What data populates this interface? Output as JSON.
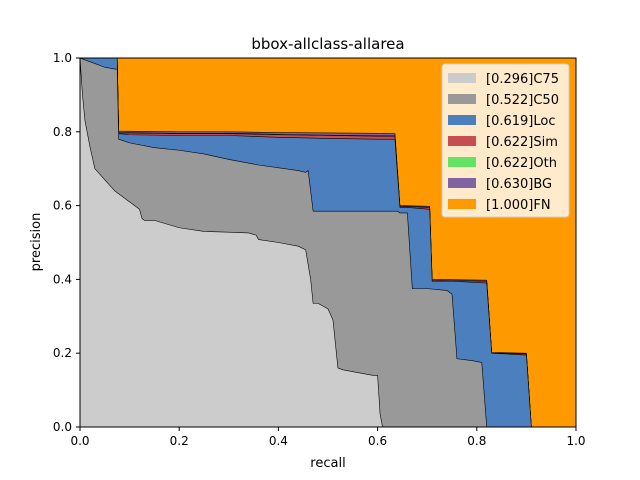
{
  "chart_data": {
    "type": "area",
    "title": "bbox-allclass-allarea",
    "xlabel": "recall",
    "ylabel": "precision",
    "xlim": [
      0,
      1
    ],
    "ylim": [
      0,
      1
    ],
    "xticks": [
      "0.0",
      "0.2",
      "0.4",
      "0.6",
      "0.8",
      "1.0"
    ],
    "yticks": [
      "0.0",
      "0.2",
      "0.4",
      "0.6",
      "0.8",
      "1.0"
    ],
    "legend_position": "top-right",
    "grid": false,
    "series": [
      {
        "name": "[0.296]C75",
        "color": "#cccccc",
        "points": [
          [
            0.0,
            1.0
          ],
          [
            0.005,
            0.9
          ],
          [
            0.01,
            0.83
          ],
          [
            0.02,
            0.76
          ],
          [
            0.03,
            0.7
          ],
          [
            0.05,
            0.67
          ],
          [
            0.07,
            0.64
          ],
          [
            0.1,
            0.61
          ],
          [
            0.12,
            0.59
          ],
          [
            0.125,
            0.565
          ],
          [
            0.13,
            0.56
          ],
          [
            0.15,
            0.56
          ],
          [
            0.2,
            0.54
          ],
          [
            0.25,
            0.53
          ],
          [
            0.3,
            0.528
          ],
          [
            0.34,
            0.526
          ],
          [
            0.355,
            0.52
          ],
          [
            0.36,
            0.508
          ],
          [
            0.4,
            0.5
          ],
          [
            0.44,
            0.49
          ],
          [
            0.455,
            0.48
          ],
          [
            0.465,
            0.4
          ],
          [
            0.47,
            0.335
          ],
          [
            0.48,
            0.335
          ],
          [
            0.5,
            0.32
          ],
          [
            0.51,
            0.29
          ],
          [
            0.52,
            0.16
          ],
          [
            0.53,
            0.155
          ],
          [
            0.55,
            0.15
          ],
          [
            0.59,
            0.14
          ],
          [
            0.6,
            0.14
          ],
          [
            0.605,
            0.035
          ],
          [
            0.61,
            0.0
          ]
        ]
      },
      {
        "name": "[0.522]C50",
        "color": "#999999",
        "points": [
          [
            0.0,
            1.0
          ],
          [
            0.02,
            0.99
          ],
          [
            0.05,
            0.975
          ],
          [
            0.07,
            0.97
          ],
          [
            0.075,
            0.97
          ],
          [
            0.078,
            0.78
          ],
          [
            0.1,
            0.77
          ],
          [
            0.15,
            0.757
          ],
          [
            0.2,
            0.75
          ],
          [
            0.25,
            0.74
          ],
          [
            0.3,
            0.725
          ],
          [
            0.36,
            0.71
          ],
          [
            0.44,
            0.695
          ],
          [
            0.455,
            0.69
          ],
          [
            0.46,
            0.695
          ],
          [
            0.465,
            0.64
          ],
          [
            0.47,
            0.585
          ],
          [
            0.64,
            0.585
          ],
          [
            0.645,
            0.58
          ],
          [
            0.66,
            0.58
          ],
          [
            0.67,
            0.375
          ],
          [
            0.7,
            0.375
          ],
          [
            0.74,
            0.37
          ],
          [
            0.75,
            0.36
          ],
          [
            0.76,
            0.185
          ],
          [
            0.79,
            0.18
          ],
          [
            0.81,
            0.175
          ],
          [
            0.82,
            0.0
          ]
        ]
      },
      {
        "name": "[0.619]Loc",
        "color": "#4c7fbe",
        "points": [
          [
            0.0,
            1.0
          ],
          [
            0.07,
            1.0
          ],
          [
            0.075,
            1.0
          ],
          [
            0.078,
            0.795
          ],
          [
            0.1,
            0.792
          ],
          [
            0.2,
            0.79
          ],
          [
            0.3,
            0.79
          ],
          [
            0.4,
            0.785
          ],
          [
            0.5,
            0.782
          ],
          [
            0.6,
            0.78
          ],
          [
            0.635,
            0.78
          ],
          [
            0.645,
            0.595
          ],
          [
            0.66,
            0.595
          ],
          [
            0.705,
            0.59
          ],
          [
            0.71,
            0.395
          ],
          [
            0.75,
            0.395
          ],
          [
            0.82,
            0.39
          ],
          [
            0.83,
            0.2
          ],
          [
            0.9,
            0.195
          ],
          [
            0.91,
            0.0
          ]
        ]
      },
      {
        "name": "[0.622]Sim",
        "color": "#c44e52",
        "points": [
          [
            0.0,
            1.0
          ],
          [
            0.07,
            1.0
          ],
          [
            0.075,
            1.0
          ],
          [
            0.078,
            0.797
          ],
          [
            0.2,
            0.795
          ],
          [
            0.3,
            0.795
          ],
          [
            0.4,
            0.792
          ],
          [
            0.5,
            0.79
          ],
          [
            0.6,
            0.788
          ],
          [
            0.635,
            0.788
          ],
          [
            0.645,
            0.598
          ],
          [
            0.705,
            0.595
          ],
          [
            0.71,
            0.397
          ],
          [
            0.82,
            0.395
          ],
          [
            0.83,
            0.2
          ],
          [
            0.9,
            0.198
          ],
          [
            0.91,
            0.0
          ]
        ]
      },
      {
        "name": "[0.622]Oth",
        "color": "#64e264",
        "points": [
          [
            0.0,
            1.0
          ],
          [
            0.07,
            1.0
          ],
          [
            0.075,
            1.0
          ],
          [
            0.078,
            0.798
          ],
          [
            0.2,
            0.796
          ],
          [
            0.3,
            0.796
          ],
          [
            0.4,
            0.793
          ],
          [
            0.5,
            0.791
          ],
          [
            0.6,
            0.789
          ],
          [
            0.635,
            0.789
          ],
          [
            0.645,
            0.598
          ],
          [
            0.705,
            0.595
          ],
          [
            0.71,
            0.397
          ],
          [
            0.82,
            0.395
          ],
          [
            0.83,
            0.2
          ],
          [
            0.9,
            0.198
          ],
          [
            0.91,
            0.0
          ]
        ]
      },
      {
        "name": "[0.630]BG",
        "color": "#8064a2",
        "points": [
          [
            0.0,
            1.0
          ],
          [
            0.07,
            1.0
          ],
          [
            0.075,
            1.0
          ],
          [
            0.078,
            0.802
          ],
          [
            0.2,
            0.8
          ],
          [
            0.3,
            0.8
          ],
          [
            0.4,
            0.798
          ],
          [
            0.5,
            0.797
          ],
          [
            0.6,
            0.796
          ],
          [
            0.635,
            0.795
          ],
          [
            0.645,
            0.6
          ],
          [
            0.705,
            0.598
          ],
          [
            0.71,
            0.4
          ],
          [
            0.82,
            0.398
          ],
          [
            0.83,
            0.202
          ],
          [
            0.9,
            0.2
          ],
          [
            0.91,
            0.0
          ]
        ]
      },
      {
        "name": "[1.000]FN",
        "color": "#ff9900",
        "points": [
          [
            0.0,
            1.0
          ],
          [
            1.0,
            1.0
          ],
          [
            1.0,
            0.0
          ]
        ]
      }
    ]
  }
}
